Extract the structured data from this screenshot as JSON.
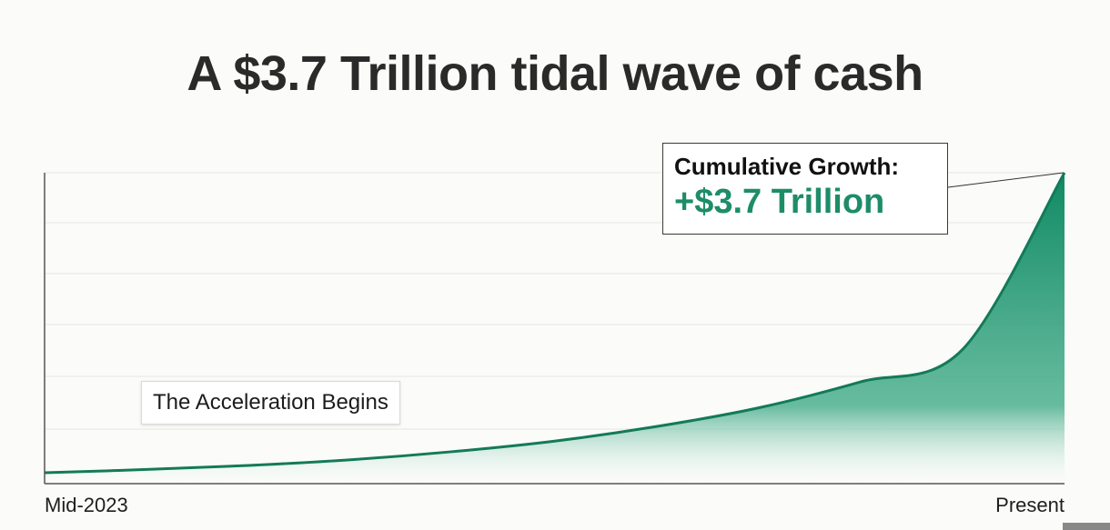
{
  "chart_data": {
    "type": "area",
    "title": "A $3.7 Trillion tidal wave of cash",
    "xlabel": "",
    "ylabel": "",
    "x_tick_labels": [
      "Mid-2023",
      "Present"
    ],
    "x": [
      0,
      0.1,
      0.2,
      0.3,
      0.4,
      0.5,
      0.6,
      0.7,
      0.8,
      0.9,
      1.0
    ],
    "series": [
      {
        "values": [
          0.0,
          0.04,
          0.09,
          0.16,
          0.26,
          0.39,
          0.57,
          0.8,
          1.12,
          1.52,
          3.7
        ],
        "color": "#1e8c69"
      }
    ],
    "ylim": [
      0,
      3.7
    ],
    "grid": true,
    "legend": "none",
    "annotations": [
      {
        "text": "The Acceleration Begins"
      },
      {
        "heading": "Cumulative Growth:",
        "value": "+$3.7 Trillion"
      }
    ]
  },
  "colors": {
    "accent": "#1e8c69",
    "grid": "#e6e6e6"
  }
}
